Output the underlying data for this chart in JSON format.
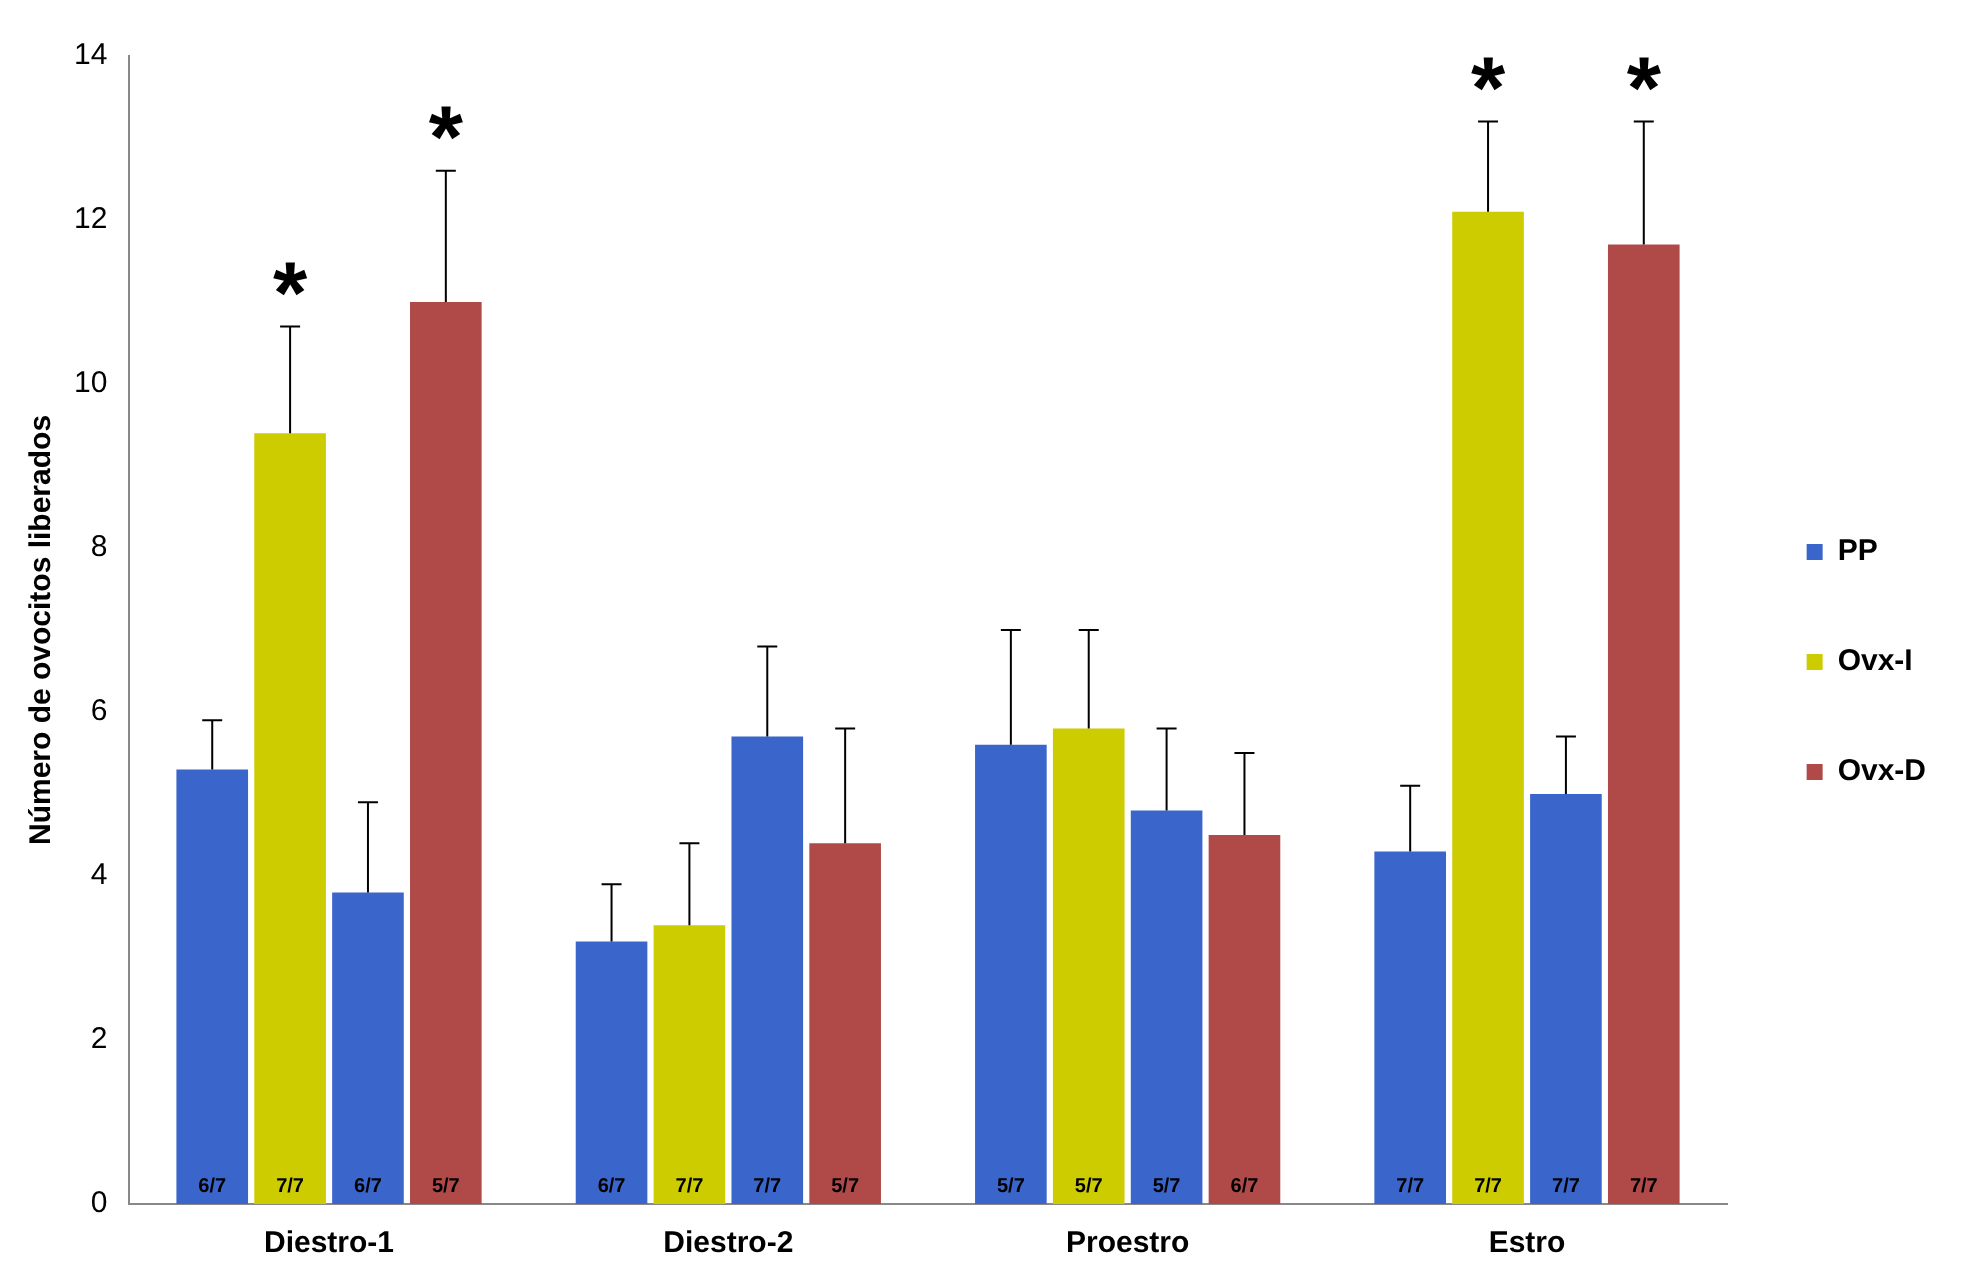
{
  "chart_data": {
    "type": "bar",
    "ylabel": "Número de ovocitos liberados",
    "categories": [
      "Diestro-1",
      "Diestro-2",
      "Proestro",
      "Estro"
    ],
    "series": [
      {
        "name": "PP",
        "color": "#3a66cc",
        "values": [
          5.3,
          3.2,
          5.6,
          4.3
        ],
        "errors": [
          [
            5.3,
            5.9
          ],
          [
            3.2,
            3.9
          ],
          [
            5.6,
            7.0
          ],
          [
            4.3,
            5.1
          ]
        ],
        "value_labels": [
          "6/7",
          "6/7",
          "5/7",
          "7/7"
        ]
      },
      {
        "name": "Ovx-I",
        "color": "#cccc00",
        "values": [
          9.4,
          3.4,
          5.8,
          12.1
        ],
        "errors": [
          [
            9.4,
            10.7
          ],
          [
            3.4,
            4.4
          ],
          [
            5.8,
            7.0
          ],
          [
            12.1,
            13.2
          ]
        ],
        "value_labels": [
          "7/7",
          "7/7",
          "5/7",
          "7/7"
        ]
      },
      {
        "color": "#3a66cc",
        "values": [
          3.8,
          5.7,
          4.8,
          5.0
        ],
        "errors": [
          [
            3.8,
            4.9
          ],
          [
            5.7,
            6.8
          ],
          [
            4.8,
            5.8
          ],
          [
            5.0,
            5.7
          ]
        ],
        "value_labels": [
          "6/7",
          "7/7",
          "5/7",
          "7/7"
        ]
      },
      {
        "name": "Ovx-D",
        "color": "#b04a48",
        "values": [
          11.0,
          4.4,
          4.5,
          11.7
        ],
        "errors": [
          [
            11.0,
            12.6
          ],
          [
            4.4,
            5.8
          ],
          [
            4.5,
            5.5
          ],
          [
            11.7,
            13.2
          ]
        ],
        "value_labels": [
          "5/7",
          "5/7",
          "6/7",
          "7/7"
        ]
      }
    ],
    "ylim": [
      0,
      14
    ],
    "yticks": [
      0,
      2,
      4,
      6,
      8,
      10,
      12,
      14
    ],
    "grid": false,
    "legend": "right",
    "annotations": [
      "*",
      "*",
      "*",
      "*"
    ]
  }
}
